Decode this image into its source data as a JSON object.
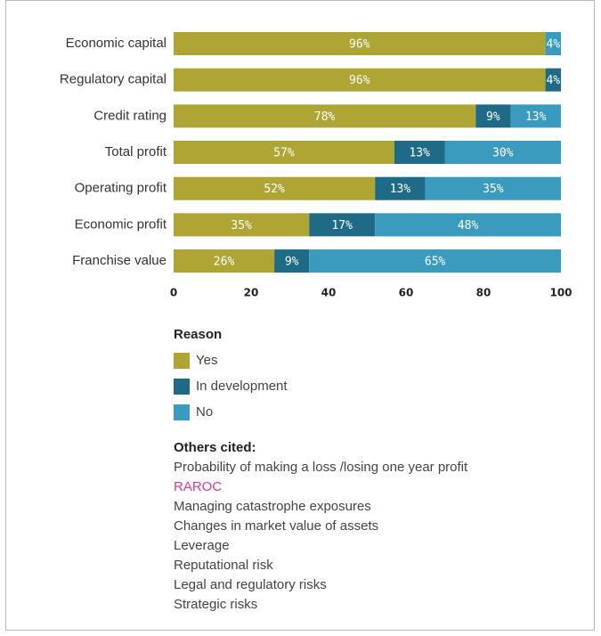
{
  "chart_data": {
    "type": "stacked_barh",
    "categories": [
      "Economic capital",
      "Regulatory capital",
      "Credit rating",
      "Total profit",
      "Operating profit",
      "Economic profit",
      "Franchise value"
    ],
    "series": [
      {
        "name": "Yes",
        "color": "#aea535",
        "values": [
          96,
          96,
          78,
          57,
          52,
          35,
          26
        ],
        "value_labels": [
          "96%",
          "96%",
          "78%",
          "57%",
          "52%",
          "35%",
          "26%"
        ]
      },
      {
        "name": "In development",
        "color": "#1f6b87",
        "values": [
          null,
          4,
          9,
          13,
          13,
          17,
          9
        ],
        "value_labels": [
          null,
          "4%",
          "9%",
          "13%",
          "13%",
          "17%",
          "9%"
        ]
      },
      {
        "name": "No",
        "color": "#3a9bbf",
        "values": [
          4,
          null,
          13,
          30,
          35,
          48,
          65
        ],
        "value_labels": [
          "4%",
          null,
          "13%",
          "30%",
          "35%",
          "48%",
          "65%"
        ]
      }
    ],
    "xlim": [
      0,
      100
    ],
    "xticks": [
      0,
      20,
      40,
      60,
      80,
      100
    ],
    "legend_title": "Reason",
    "notes": {
      "title": "Others cited:",
      "items": [
        {
          "text": "Probability of making a loss /losing one year profit",
          "color": "#444444"
        },
        {
          "text": "RAROC",
          "color": "#d6399b"
        },
        {
          "text": "Managing catastrophe exposures",
          "color": "#444444"
        },
        {
          "text": "Changes in market value of assets",
          "color": "#444444"
        },
        {
          "text": "Leverage",
          "color": "#444444"
        },
        {
          "text": "Reputational risk",
          "color": "#444444"
        },
        {
          "text": "Legal and regulatory risks",
          "color": "#444444"
        },
        {
          "text": "Strategic risks",
          "color": "#444444"
        }
      ]
    }
  }
}
